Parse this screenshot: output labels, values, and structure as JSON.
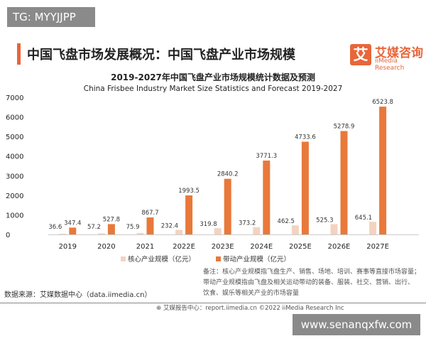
{
  "watermark_top": "TG: MYYJJPP",
  "watermark_bottom": "www.senanqxfw.com",
  "header": {
    "title": "中国飞盘市场发展概况：中国飞盘产业市场规模",
    "logo_mark": "艾",
    "logo_cn": "艾媒咨询",
    "logo_en": "iiMedia Research"
  },
  "chart_data": {
    "type": "bar",
    "title": "2019-2027年中国飞盘产业市场规模统计数据及预测",
    "subtitle": "China Frisbee Industry Market Size Statistics and Forecast 2019-2027",
    "categories": [
      "2019",
      "2020",
      "2021",
      "2022E",
      "2023E",
      "2024E",
      "2025E",
      "2026E",
      "2027E"
    ],
    "yticks": [
      "0",
      "1000",
      "2000",
      "3000",
      "4000",
      "5000",
      "6000",
      "7000"
    ],
    "ylim": [
      0,
      7000
    ],
    "grid": false,
    "legend_position": "bottom",
    "series": [
      {
        "name": "核心产业规模（亿元）",
        "color": "#f3d3c0",
        "values": [
          36.6,
          57.2,
          75.9,
          232.4,
          319.8,
          373.2,
          462.5,
          525.3,
          645.1
        ],
        "labels": [
          "36.6",
          "57.2",
          "75.9",
          "232.4",
          "319.8",
          "373.2",
          "462.5",
          "525.3",
          "645.1"
        ]
      },
      {
        "name": "带动产业规模（亿元）",
        "color": "#e8793a",
        "values": [
          347.4,
          527.8,
          867.7,
          1993.5,
          2840.2,
          3771.3,
          4733.6,
          5278.9,
          6523.8
        ],
        "labels": [
          "347.4",
          "527.8",
          "867.7",
          "1993.5",
          "2840.2",
          "3771.3",
          "4733.6",
          "5278.9",
          "6523.8"
        ]
      }
    ]
  },
  "source": "数据来源：艾媒数据中心（data.iimedia.cn）",
  "note": [
    "备注：核心产业规模指飞盘生产、销售、场地、培训、赛事等直接市场容量；",
    "带动产业规模指由飞盘及相关运动带动的装备、服装、社交、营销、出行、",
    "饮食、娱乐等相关产业的市场容量"
  ],
  "footer": "⊕ 艾媒报告中心：report.iimedia.cn   ©2022  iiMedia Research  Inc"
}
